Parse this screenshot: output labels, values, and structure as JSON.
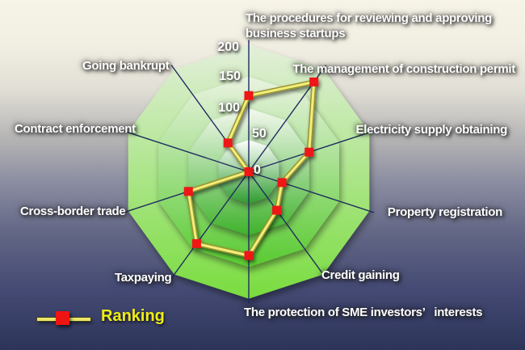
{
  "chart_data": {
    "type": "radar",
    "categories": [
      "The procedures for reviewing and approving business startups",
      "The management of construction permit",
      "Electricity supply obtaining",
      "Property registration",
      "Credit gaining",
      "The protection of SME investors’   interests",
      "Taxpaying",
      "Cross-border trade",
      "Contract enforcement",
      "Going bankrupt"
    ],
    "series": [
      {
        "name": "Ranking",
        "values": [
          120,
          175,
          100,
          55,
          75,
          132,
          140,
          100,
          0,
          56
        ]
      }
    ],
    "radial_ticks": [
      0,
      50,
      100,
      150,
      200
    ],
    "rmax": 200,
    "rings": 4,
    "grid_shape": "decagon",
    "legend_position": "bottom-left",
    "colors": {
      "axis_line": "#1e2d5f",
      "marker": "#ee1412",
      "series_line_core": "#f2ee7e",
      "series_line_edge": "#99952e",
      "legend_text": "#f0ee12",
      "label_text": "#ffffff",
      "ring_tops": [
        "#ffffff",
        "#f3f8ee",
        "#eaf3e1",
        "#e3efda"
      ],
      "ring_bottoms": [
        "#2f9c2e",
        "#3fb22b",
        "#58ca30",
        "#79dc3e"
      ]
    }
  }
}
